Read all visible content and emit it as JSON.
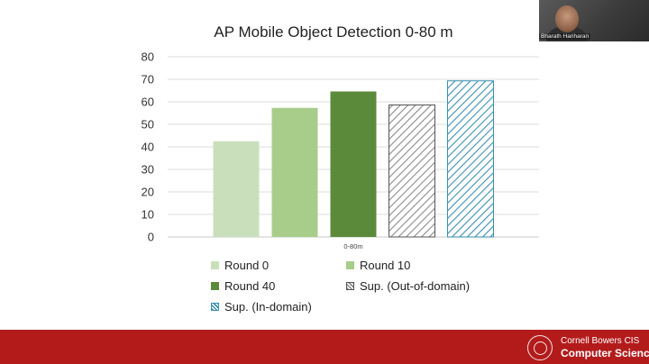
{
  "slide": {
    "title": "AP Mobile Object Detection 0-80 m"
  },
  "chart_data": {
    "type": "bar",
    "title": "AP Mobile Object Detection 0-80 m",
    "xlabel": "",
    "ylabel": "",
    "categories": [
      "0-80m"
    ],
    "ylim": [
      0,
      80
    ],
    "yticks": [
      0,
      10,
      20,
      30,
      40,
      50,
      60,
      70,
      80
    ],
    "grid": true,
    "legend_position": "bottom",
    "series": [
      {
        "name": "Round 0",
        "values": [
          42.5
        ],
        "color": "#c9dfbb",
        "pattern": "solid"
      },
      {
        "name": "Round 10",
        "values": [
          57.3
        ],
        "color": "#a8cd8a",
        "pattern": "solid"
      },
      {
        "name": "Round 40",
        "values": [
          64.6
        ],
        "color": "#5c8a3b",
        "pattern": "solid"
      },
      {
        "name": "Sup. (Out-of-domain)",
        "values": [
          58.6
        ],
        "color": "#8a8a8a",
        "pattern": "hatched"
      },
      {
        "name": "Sup. (In-domain)",
        "values": [
          69.3
        ],
        "color": "#3a8fb0",
        "pattern": "hatched"
      }
    ]
  },
  "webcam": {
    "name": "Bharath Hariharan"
  },
  "footer": {
    "line1": "Cornell Bowers CIS",
    "line2": "Computer Science",
    "background": "#b31b1b"
  }
}
